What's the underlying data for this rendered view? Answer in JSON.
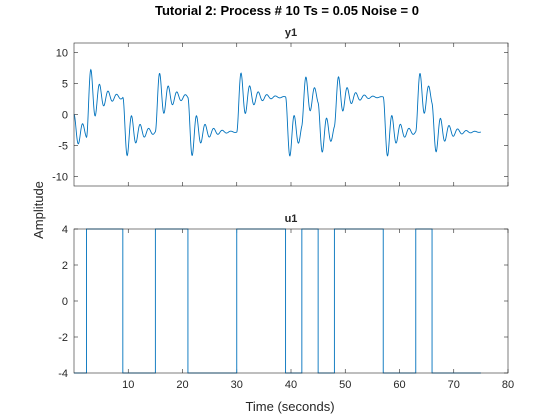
{
  "figure": {
    "title": "Tutorial 2: Process # 10  Ts = 0.05  Noise =  0",
    "ylabel": "Amplitude",
    "xlabel": "Time (seconds)",
    "line_color": "#0072BD",
    "axes_color": "#262626"
  },
  "chart_data": [
    {
      "type": "line",
      "title": "y1",
      "xlim": [
        0,
        80
      ],
      "ylim": [
        -11.5,
        11.5
      ],
      "yticks": [
        -10,
        -5,
        0,
        5,
        10
      ],
      "xticks": [
        10,
        20,
        30,
        40,
        50,
        60,
        70,
        80
      ],
      "show_xtick_labels": false,
      "step_times": [
        0,
        2.3,
        9,
        15,
        21,
        30,
        39,
        42,
        45,
        48,
        57,
        63,
        66,
        75
      ],
      "step_levels": [
        -4,
        4,
        -4,
        4,
        -4,
        4,
        -4,
        4,
        -4,
        4,
        -4,
        4,
        -4
      ],
      "steady_state_gain": 0.7,
      "series": [
        {
          "name": "y1"
        }
      ]
    },
    {
      "type": "line",
      "title": "u1",
      "xlim": [
        0,
        80
      ],
      "ylim": [
        -4,
        4
      ],
      "yticks": [
        -4,
        -2,
        0,
        2,
        4
      ],
      "xticks": [
        10,
        20,
        30,
        40,
        50,
        60,
        70,
        80
      ],
      "xtick_labels": [
        "10",
        "20",
        "30",
        "40",
        "50",
        "60",
        "70",
        "80"
      ],
      "x": [
        0,
        2.3,
        2.3,
        9,
        9,
        15,
        15,
        21,
        21,
        30,
        30,
        39,
        39,
        42,
        42,
        45,
        45,
        48,
        48,
        57,
        57,
        63,
        63,
        66,
        66,
        75
      ],
      "y": [
        -4,
        -4,
        4,
        4,
        -4,
        -4,
        4,
        4,
        -4,
        -4,
        4,
        4,
        -4,
        -4,
        4,
        4,
        -4,
        -4,
        4,
        4,
        -4,
        -4,
        4,
        4,
        -4,
        -4
      ],
      "series": [
        {
          "name": "u1"
        }
      ]
    }
  ]
}
